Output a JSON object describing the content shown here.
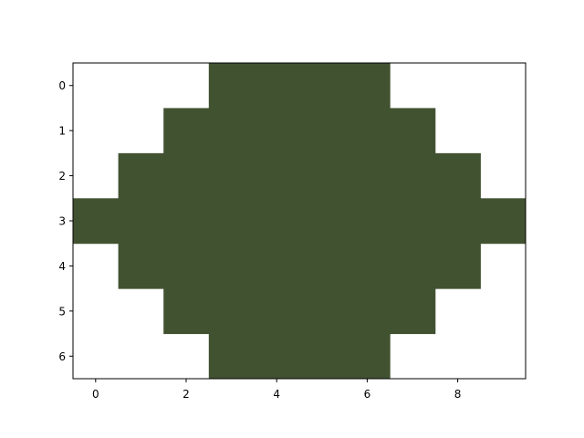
{
  "chart_data": {
    "type": "heatmap",
    "title": "",
    "xlabel": "",
    "ylabel": "",
    "x_ticks": [
      0,
      2,
      4,
      6,
      8
    ],
    "y_ticks": [
      0,
      1,
      2,
      3,
      4,
      5,
      6
    ],
    "xlim": [
      -0.5,
      9.5
    ],
    "ylim": [
      6.5,
      -0.5
    ],
    "grid": false,
    "colors": {
      "filled": "#415231",
      "empty": "#ffffff"
    },
    "matrix": [
      [
        0,
        0,
        0,
        1,
        1,
        1,
        1,
        0,
        0,
        0
      ],
      [
        0,
        0,
        1,
        1,
        1,
        1,
        1,
        1,
        0,
        0
      ],
      [
        0,
        1,
        1,
        1,
        1,
        1,
        1,
        1,
        1,
        0
      ],
      [
        1,
        1,
        1,
        1,
        1,
        1,
        1,
        1,
        1,
        1
      ],
      [
        0,
        1,
        1,
        1,
        1,
        1,
        1,
        1,
        1,
        0
      ],
      [
        0,
        0,
        1,
        1,
        1,
        1,
        1,
        1,
        0,
        0
      ],
      [
        0,
        0,
        0,
        1,
        1,
        1,
        1,
        0,
        0,
        0
      ]
    ]
  }
}
